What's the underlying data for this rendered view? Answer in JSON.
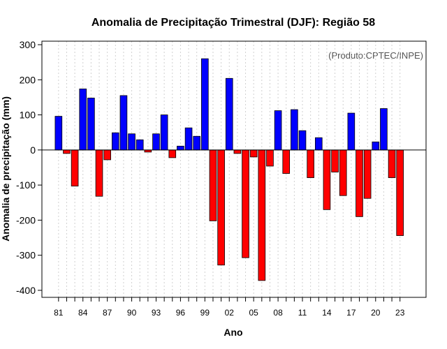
{
  "chart_data": {
    "type": "bar",
    "title": "Anomalia de Precipitação Trimestral (DJF): Região 58",
    "xlabel": "Ano",
    "ylabel": "Anomalia de precipitação (mm)",
    "credit": "(Produto:CPTEC/INPE)",
    "ylim": [
      -420,
      310
    ],
    "yticks": [
      300,
      200,
      100,
      0,
      -100,
      -200,
      -300,
      -400
    ],
    "ytick_labels": [
      "300",
      "200",
      "100",
      "0",
      "-100",
      "-200",
      "-300",
      "-400"
    ],
    "xtick_labels": [
      "81",
      "84",
      "87",
      "90",
      "93",
      "96",
      "99",
      "02",
      "05",
      "08",
      "11",
      "14",
      "17",
      "20",
      "23"
    ],
    "years": [
      1981,
      1982,
      1983,
      1984,
      1985,
      1986,
      1987,
      1988,
      1989,
      1990,
      1991,
      1992,
      1993,
      1994,
      1995,
      1996,
      1997,
      1998,
      1999,
      2000,
      2001,
      2002,
      2003,
      2004,
      2005,
      2006,
      2007,
      2008,
      2009,
      2010,
      2011,
      2012,
      2013,
      2014,
      2015,
      2016,
      2017,
      2018,
      2019,
      2020,
      2021,
      2022,
      2023
    ],
    "values": [
      96,
      -10,
      -103,
      174,
      148,
      -132,
      -28,
      49,
      155,
      46,
      29,
      -6,
      46,
      100,
      -22,
      11,
      63,
      39,
      260,
      -202,
      -328,
      204,
      -10,
      -307,
      -20,
      -372,
      -46,
      112,
      -67,
      115,
      55,
      -79,
      35,
      -170,
      -63,
      -130,
      105,
      -190,
      -138,
      23,
      118,
      -79,
      -244
    ],
    "colors": {
      "positive": "#0000ff",
      "negative": "#ff0000",
      "zero_line": "#000000",
      "grid": "#d0d0d0"
    }
  }
}
